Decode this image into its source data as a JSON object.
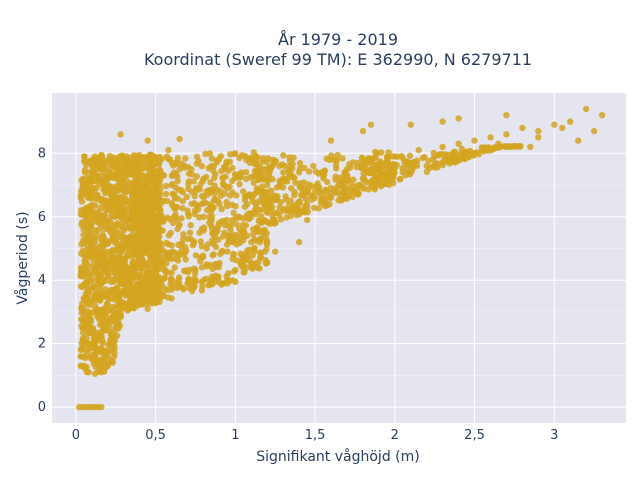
{
  "colors": {
    "plot_background": "#e5e5f0",
    "grid": "#ffffff",
    "marker": "#d4a520",
    "text": "#2a3f5f"
  },
  "chart_data": {
    "type": "scatter",
    "title_line1": "År 1979 - 2019",
    "title_line2": "Koordinat (Sweref 99 TM): E 362990, N 6279711",
    "xlabel": "Signifikant våghöjd (m)",
    "ylabel": "Vågperiod (s)",
    "xlim": [
      -0.15,
      3.45
    ],
    "ylim": [
      -0.5,
      9.9
    ],
    "x_ticks": [
      0,
      0.5,
      1,
      1.5,
      2,
      2.5,
      3
    ],
    "x_tick_labels": [
      "0",
      "0,5",
      "1",
      "1,5",
      "2",
      "2,5",
      "3"
    ],
    "y_ticks": [
      0,
      2,
      4,
      6,
      8
    ],
    "y_tick_labels": [
      "0",
      "2",
      "4",
      "6",
      "8"
    ],
    "grid": true,
    "legend": "none",
    "series": [
      {
        "points": [
          [
            0.02,
            0
          ],
          [
            0.04,
            0
          ],
          [
            0.06,
            0
          ],
          [
            0.08,
            0
          ],
          [
            0.1,
            0
          ],
          [
            0.12,
            0
          ],
          [
            0.14,
            0
          ],
          [
            0.16,
            0
          ],
          [
            0.03,
            1.3
          ],
          [
            0.03,
            1.6
          ],
          [
            0.04,
            2.0
          ],
          [
            0.04,
            2.5
          ],
          [
            0.05,
            3.0
          ],
          [
            0.05,
            3.4
          ],
          [
            0.06,
            3.9
          ],
          [
            0.06,
            4.5
          ],
          [
            0.07,
            5.1
          ],
          [
            0.07,
            5.7
          ],
          [
            0.08,
            6.3
          ],
          [
            0.08,
            6.8
          ],
          [
            0.09,
            7.2
          ],
          [
            0.1,
            7.6
          ],
          [
            0.12,
            7.9
          ],
          [
            0.16,
            7.95
          ],
          [
            0.08,
            1.1
          ],
          [
            0.12,
            1.05
          ],
          [
            0.16,
            1.1
          ],
          [
            0.2,
            1.3
          ],
          [
            0.24,
            1.6
          ],
          [
            0.14,
            2.2
          ],
          [
            0.18,
            2.6
          ],
          [
            0.22,
            2.3
          ],
          [
            0.12,
            3.2
          ],
          [
            0.2,
            3.6
          ],
          [
            0.28,
            3.0
          ],
          [
            0.3,
            3.9
          ],
          [
            0.15,
            4.4
          ],
          [
            0.25,
            4.6
          ],
          [
            0.35,
            3.4
          ],
          [
            0.36,
            4.2
          ],
          [
            0.12,
            5.2
          ],
          [
            0.22,
            5.5
          ],
          [
            0.32,
            5.0
          ],
          [
            0.4,
            5.6
          ],
          [
            0.16,
            6.0
          ],
          [
            0.26,
            6.3
          ],
          [
            0.36,
            6.1
          ],
          [
            0.44,
            6.6
          ],
          [
            0.18,
            7.0
          ],
          [
            0.28,
            7.4
          ],
          [
            0.38,
            7.1
          ],
          [
            0.46,
            7.5
          ],
          [
            0.22,
            7.8
          ],
          [
            0.32,
            7.9
          ],
          [
            0.42,
            7.85
          ],
          [
            0.45,
            3.1
          ],
          [
            0.5,
            3.3
          ],
          [
            0.55,
            3.5
          ],
          [
            0.6,
            3.7
          ],
          [
            0.65,
            3.8
          ],
          [
            0.7,
            3.9
          ],
          [
            0.75,
            3.95
          ],
          [
            0.8,
            4.0
          ],
          [
            0.85,
            4.0
          ],
          [
            0.9,
            3.95
          ],
          [
            0.95,
            3.9
          ],
          [
            1.0,
            3.95
          ],
          [
            0.5,
            4.3
          ],
          [
            0.55,
            4.7
          ],
          [
            0.6,
            5.1
          ],
          [
            0.62,
            4.4
          ],
          [
            0.68,
            4.8
          ],
          [
            0.72,
            5.3
          ],
          [
            0.78,
            4.6
          ],
          [
            0.82,
            5.0
          ],
          [
            0.88,
            5.5
          ],
          [
            0.92,
            4.9
          ],
          [
            0.98,
            5.2
          ],
          [
            0.5,
            6.0
          ],
          [
            0.55,
            6.5
          ],
          [
            0.6,
            7.0
          ],
          [
            0.65,
            7.5
          ],
          [
            0.58,
            8.1
          ],
          [
            0.7,
            6.2
          ],
          [
            0.75,
            6.8
          ],
          [
            0.8,
            7.2
          ],
          [
            0.85,
            7.6
          ],
          [
            0.9,
            6.4
          ],
          [
            0.95,
            6.9
          ],
          [
            1.0,
            7.3
          ],
          [
            1.0,
            8.0
          ],
          [
            1.05,
            5.5
          ],
          [
            1.1,
            6.0
          ],
          [
            1.15,
            6.5
          ],
          [
            1.2,
            7.0
          ],
          [
            1.25,
            5.8
          ],
          [
            1.3,
            6.2
          ],
          [
            1.35,
            6.9
          ],
          [
            1.4,
            7.4
          ],
          [
            1.45,
            6.3
          ],
          [
            1.5,
            6.8
          ],
          [
            1.55,
            7.3
          ],
          [
            1.6,
            6.6
          ],
          [
            1.65,
            7.0
          ],
          [
            1.7,
            7.5
          ],
          [
            1.75,
            6.8
          ],
          [
            1.8,
            7.2
          ],
          [
            1.85,
            7.7
          ],
          [
            1.9,
            7.1
          ],
          [
            1.95,
            7.5
          ],
          [
            2.0,
            7.9
          ],
          [
            2.05,
            7.4
          ],
          [
            2.1,
            7.7
          ],
          [
            2.15,
            8.1
          ],
          [
            2.2,
            7.6
          ],
          [
            2.25,
            7.9
          ],
          [
            2.3,
            8.2
          ],
          [
            2.35,
            7.8
          ],
          [
            2.4,
            8.3
          ],
          [
            2.45,
            8.0
          ],
          [
            2.5,
            8.4
          ],
          [
            2.55,
            8.1
          ],
          [
            2.6,
            8.5
          ],
          [
            2.65,
            8.3
          ],
          [
            2.7,
            8.6
          ],
          [
            2.8,
            8.8
          ],
          [
            2.9,
            8.7
          ],
          [
            0.28,
            8.6
          ],
          [
            0.45,
            8.4
          ],
          [
            0.65,
            8.45
          ],
          [
            1.6,
            8.4
          ],
          [
            1.8,
            8.7
          ],
          [
            1.85,
            8.9
          ],
          [
            2.1,
            8.9
          ],
          [
            2.3,
            9.0
          ],
          [
            2.4,
            9.1
          ],
          [
            2.7,
            9.2
          ],
          [
            2.85,
            8.2
          ],
          [
            2.9,
            8.5
          ],
          [
            3.0,
            8.9
          ],
          [
            3.05,
            8.8
          ],
          [
            3.1,
            9.0
          ],
          [
            3.15,
            8.4
          ],
          [
            3.2,
            9.4
          ],
          [
            3.25,
            8.7
          ],
          [
            3.3,
            9.2
          ],
          [
            0.8,
            6.0
          ],
          [
            1.1,
            5.2
          ],
          [
            1.2,
            6.3
          ],
          [
            1.45,
            5.9
          ],
          [
            1.25,
            4.9
          ],
          [
            1.1,
            4.5
          ],
          [
            1.4,
            5.2
          ]
        ]
      }
    ]
  }
}
